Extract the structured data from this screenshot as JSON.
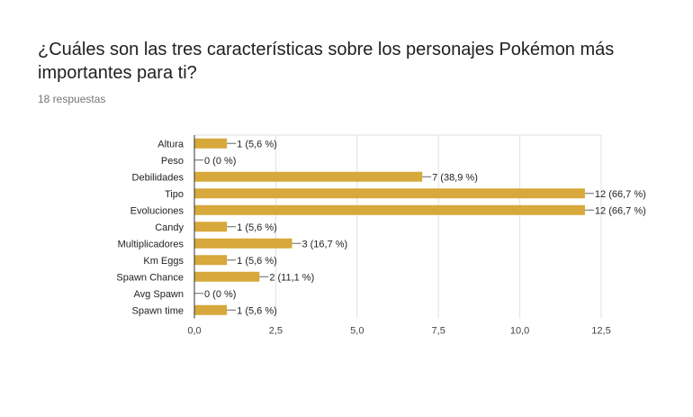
{
  "question": {
    "title": "¿Cuáles son las tres características sobre los personajes Pokémon más importantes para ti?",
    "response_count": "18 respuestas"
  },
  "chart_data": {
    "type": "bar",
    "orientation": "horizontal",
    "categories": [
      "Altura",
      "Peso",
      "Debilidades",
      "Tipo",
      "Evoluciones",
      "Candy",
      "Multiplicadores",
      "Km Eggs",
      "Spawn Chance",
      "Avg Spawn",
      "Spawn time"
    ],
    "values": [
      1,
      0,
      7,
      12,
      12,
      1,
      3,
      1,
      2,
      0,
      1
    ],
    "data_labels": [
      "1 (5,6 %)",
      "0 (0 %)",
      "7 (38,9 %)",
      "12 (66,7 %)",
      "12 (66,7 %)",
      "1 (5,6 %)",
      "3 (16,7 %)",
      "1 (5,6 %)",
      "2 (11,1 %)",
      "0 (0 %)",
      "1 (5,6 %)"
    ],
    "xlim": [
      0,
      12.5
    ],
    "x_ticks": [
      0,
      2.5,
      5,
      7.5,
      10,
      12.5
    ],
    "x_tick_labels": [
      "0,0",
      "2,5",
      "5,0",
      "7,5",
      "10,0",
      "12,5"
    ],
    "grid": true,
    "bar_color": "#d7a83b"
  }
}
